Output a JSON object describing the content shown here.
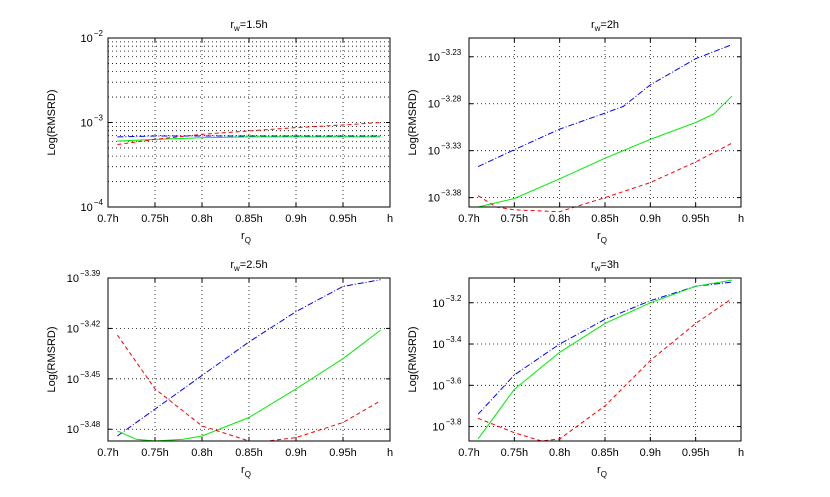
{
  "chart_data": [
    {
      "type": "line",
      "title": "r_w=1.5h",
      "title_base": "r",
      "title_sub": "w",
      "title_rest": "=1.5h",
      "ylabel": "Log(RMSRD)",
      "xlabel_base": "r",
      "xlabel_sub": "Q",
      "yscale": "log",
      "grid": true,
      "xlim": [
        0.7,
        1.0
      ],
      "ylim_exp": [
        -4,
        -2
      ],
      "x_ticks": [
        0.7,
        0.75,
        0.8,
        0.85,
        0.9,
        0.95,
        1.0
      ],
      "x_tick_labels": [
        "0.7h",
        "0.75h",
        "0.8h",
        "0.85h",
        "0.9h",
        "0.95h",
        "h"
      ],
      "y_ticks": [
        -4,
        -3,
        -2
      ],
      "y_tick_base": "10",
      "y_tick_exps": [
        "−4",
        "−3",
        "−2"
      ],
      "minor_grid": true,
      "series": [
        {
          "color": "#0000ff",
          "dash": "6 2 1 2",
          "x": [
            0.71,
            0.75,
            0.8,
            0.85,
            0.9,
            0.95,
            0.99
          ],
          "y": [
            -3.17,
            -3.16,
            -3.16,
            -3.16,
            -3.16,
            -3.16,
            -3.16
          ]
        },
        {
          "color": "#00ee00",
          "dash": "",
          "x": [
            0.71,
            0.75,
            0.8,
            0.85,
            0.9,
            0.95,
            0.99
          ],
          "y": [
            -3.22,
            -3.2,
            -3.18,
            -3.17,
            -3.17,
            -3.17,
            -3.17
          ]
        },
        {
          "color": "#ff0000",
          "dash": "4 3",
          "x": [
            0.71,
            0.75,
            0.8,
            0.85,
            0.9,
            0.95,
            0.99
          ],
          "y": [
            -3.26,
            -3.2,
            -3.14,
            -3.1,
            -3.06,
            -3.03,
            -3.0
          ]
        }
      ]
    },
    {
      "type": "line",
      "title": "r_w=2h",
      "title_base": "r",
      "title_sub": "w",
      "title_rest": "=2h",
      "ylabel": "Log(RMSRD)",
      "xlabel_base": "r",
      "xlabel_sub": "Q",
      "yscale": "log",
      "grid": true,
      "xlim": [
        0.7,
        1.0
      ],
      "ylim_exp": [
        -3.39,
        -3.21
      ],
      "x_ticks": [
        0.7,
        0.75,
        0.8,
        0.85,
        0.9,
        0.95,
        1.0
      ],
      "x_tick_labels": [
        "0.7h",
        "0.75h",
        "0.8h",
        "0.85h",
        "0.9h",
        "0.95h",
        "h"
      ],
      "y_ticks": [
        -3.38,
        -3.33,
        -3.28,
        -3.23
      ],
      "y_tick_base": "10",
      "y_tick_exps": [
        "−3.38",
        "−3.33",
        "−3.28",
        "−3.23"
      ],
      "minor_grid": false,
      "series": [
        {
          "color": "#0000ff",
          "dash": "6 2 1 2",
          "x": [
            0.71,
            0.75,
            0.8,
            0.85,
            0.87,
            0.9,
            0.95,
            0.99
          ],
          "y": [
            -3.347,
            -3.329,
            -3.307,
            -3.29,
            -3.283,
            -3.26,
            -3.232,
            -3.217
          ]
        },
        {
          "color": "#00ee00",
          "dash": "",
          "x": [
            0.71,
            0.75,
            0.8,
            0.85,
            0.9,
            0.95,
            0.97,
            0.99
          ],
          "y": [
            -3.39,
            -3.381,
            -3.36,
            -3.338,
            -3.318,
            -3.3,
            -3.291,
            -3.272
          ]
        },
        {
          "color": "#ff0000",
          "dash": "4 3",
          "x": [
            0.71,
            0.73,
            0.75,
            0.8,
            0.85,
            0.9,
            0.95,
            0.99
          ],
          "y": [
            -3.378,
            -3.39,
            -3.393,
            -3.395,
            -3.38,
            -3.364,
            -3.342,
            -3.322
          ]
        }
      ]
    },
    {
      "type": "line",
      "title": "r_w=2.5h",
      "title_base": "r",
      "title_sub": "w",
      "title_rest": "=2.5h",
      "ylabel": "Log(RMSRD)",
      "xlabel_base": "r",
      "xlabel_sub": "Q",
      "yscale": "log",
      "grid": true,
      "xlim": [
        0.7,
        1.0
      ],
      "ylim_exp": [
        -3.487,
        -3.39
      ],
      "x_ticks": [
        0.7,
        0.75,
        0.8,
        0.85,
        0.9,
        0.95,
        1.0
      ],
      "x_tick_labels": [
        "0.7h",
        "0.75h",
        "0.8h",
        "0.85h",
        "0.9h",
        "0.95h",
        "h"
      ],
      "y_ticks": [
        -3.48,
        -3.45,
        -3.42,
        -3.39
      ],
      "y_tick_base": "10",
      "y_tick_exps": [
        "−3.48",
        "−3.45",
        "−3.42",
        "−3.39"
      ],
      "minor_grid": false,
      "series": [
        {
          "color": "#0000ff",
          "dash": "6 2 1 2",
          "x": [
            0.71,
            0.75,
            0.8,
            0.85,
            0.9,
            0.95,
            0.99
          ],
          "y": [
            -3.484,
            -3.468,
            -3.448,
            -3.428,
            -3.41,
            -3.395,
            -3.391
          ]
        },
        {
          "color": "#00ee00",
          "dash": "",
          "x": [
            0.71,
            0.73,
            0.75,
            0.78,
            0.8,
            0.85,
            0.9,
            0.95,
            0.99
          ],
          "y": [
            -3.481,
            -3.486,
            -3.487,
            -3.486,
            -3.484,
            -3.473,
            -3.456,
            -3.438,
            -3.421
          ]
        },
        {
          "color": "#ff0000",
          "dash": "4 3",
          "x": [
            0.71,
            0.75,
            0.8,
            0.85,
            0.87,
            0.9,
            0.95,
            0.99
          ],
          "y": [
            -3.424,
            -3.456,
            -3.478,
            -3.487,
            -3.487,
            -3.485,
            -3.476,
            -3.463
          ]
        }
      ]
    },
    {
      "type": "line",
      "title": "r_w=3h",
      "title_base": "r",
      "title_sub": "w",
      "title_rest": "=3h",
      "ylabel": "Log(RMSRD)",
      "xlabel_base": "r",
      "xlabel_sub": "Q",
      "yscale": "log",
      "grid": true,
      "xlim": [
        0.7,
        1.0
      ],
      "ylim_exp": [
        -3.87,
        -3.08
      ],
      "x_ticks": [
        0.7,
        0.75,
        0.8,
        0.85,
        0.9,
        0.95,
        1.0
      ],
      "x_tick_labels": [
        "0.7h",
        "0.75h",
        "0.8h",
        "0.85h",
        "0.9h",
        "0.95h",
        "h"
      ],
      "y_ticks": [
        -3.8,
        -3.6,
        -3.4,
        -3.2
      ],
      "y_tick_base": "10",
      "y_tick_exps": [
        "−3.8",
        "−3.6",
        "−3.4",
        "−3.2"
      ],
      "minor_grid": false,
      "series": [
        {
          "color": "#0000ff",
          "dash": "6 2 1 2",
          "x": [
            0.71,
            0.75,
            0.8,
            0.85,
            0.9,
            0.95,
            0.99
          ],
          "y": [
            -3.74,
            -3.55,
            -3.4,
            -3.28,
            -3.19,
            -3.12,
            -3.1
          ]
        },
        {
          "color": "#00ee00",
          "dash": "",
          "x": [
            0.71,
            0.75,
            0.8,
            0.85,
            0.9,
            0.95,
            0.99
          ],
          "y": [
            -3.86,
            -3.62,
            -3.44,
            -3.3,
            -3.2,
            -3.12,
            -3.09
          ]
        },
        {
          "color": "#ff0000",
          "dash": "4 3",
          "x": [
            0.71,
            0.75,
            0.78,
            0.8,
            0.85,
            0.9,
            0.95,
            0.99
          ],
          "y": [
            -3.76,
            -3.83,
            -3.87,
            -3.86,
            -3.7,
            -3.48,
            -3.3,
            -3.18
          ]
        }
      ]
    }
  ]
}
